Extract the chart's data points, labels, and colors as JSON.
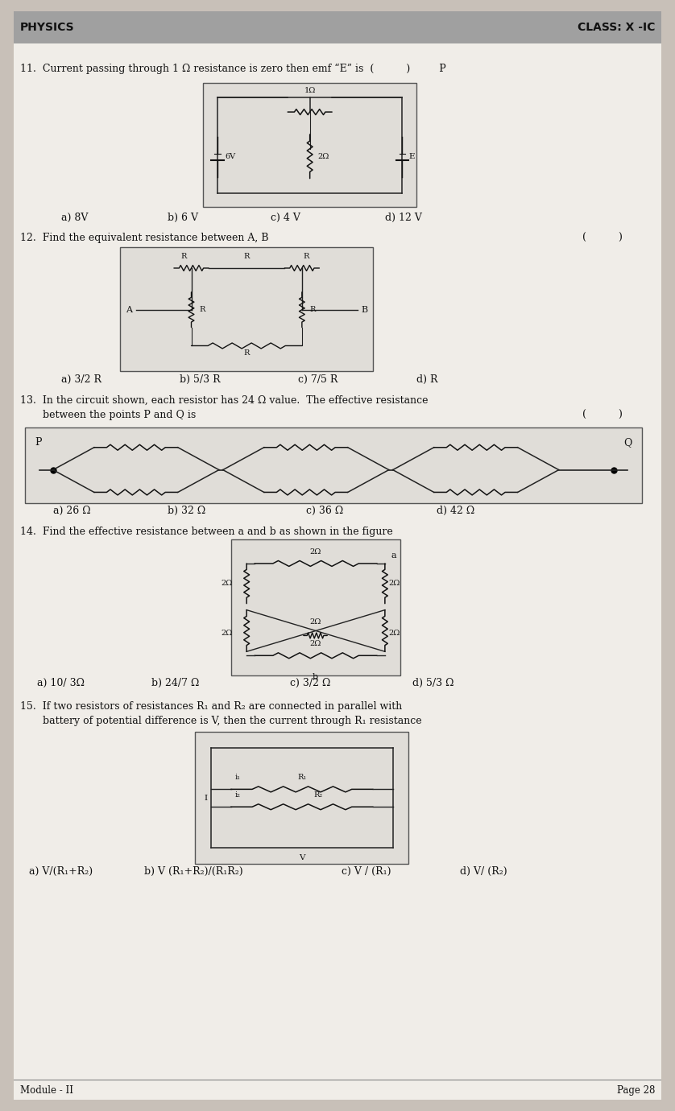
{
  "bg_color": "#c8c0b8",
  "page_color": "#f0ede8",
  "text_color": "#111111",
  "header_bg": "#a8a8a8",
  "dark_text": "#000000",
  "title": "PHYSICS",
  "class_label": "CLASS: X -IC",
  "q11_text": "11.  Current passing through 1 Ω resistance is zero then emf “E” is  (          )         P",
  "q11_answers": [
    "a) 8V",
    "b) 6 V",
    "c) 4 V",
    "d) 12 V"
  ],
  "q12_text": "12.  Find the equivalent resistance between A, B",
  "q12_bracket": "(          )",
  "q12_answers": [
    "a) 3/2 R",
    "b) 5/3 R",
    "c) 7/5 R",
    "d) R"
  ],
  "q13_text_1": "13.  In the circuit shown, each resistor has 24 Ω value.  The effective resistance",
  "q13_text_2": "       between the points P and Q is",
  "q13_bracket": "(          )",
  "q13_answers": [
    "a) 26 Ω",
    "b) 32 Ω",
    "c) 36 Ω",
    "d) 42 Ω"
  ],
  "q14_text": "14.  Find the effective resistance between a and b as shown in the figure",
  "q14_answers": [
    "a) 10/ 3Ω",
    "b) 24/7 Ω",
    "c) 3/2 Ω",
    "d) 5/3 Ω"
  ],
  "q15_text_1": "15.  If two resistors of resistances R₁ and R₂ are connected in parallel with",
  "q15_text_2": "       battery of potential difference is V, then the current through R₁ resistance",
  "q15_answers": [
    "a) V/(R₁+R₂)",
    "b) V (R₁+R₂)/(R₁R₂)",
    "c) V / (R₁)",
    "d) V/ (R₂)"
  ],
  "footer_left": "Module - II",
  "footer_right": "Page 28"
}
